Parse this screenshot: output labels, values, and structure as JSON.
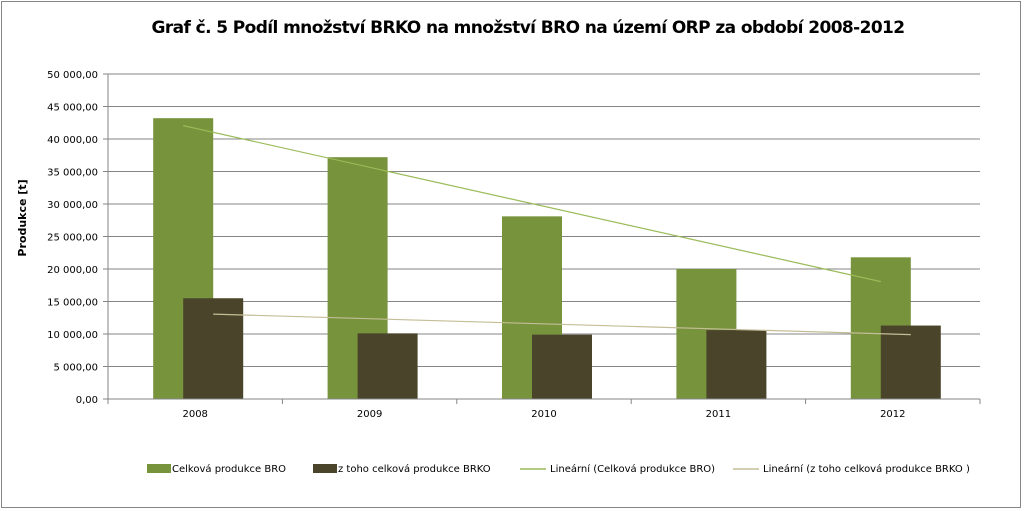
{
  "chart_data": {
    "type": "bar",
    "title": "Graf č. 5 Podíl množství BRKO na množství BRO na území ORP za období 2008-2012",
    "xlabel": "",
    "ylabel": "Produkce [t]",
    "categories": [
      "2008",
      "2009",
      "2010",
      "2011",
      "2012"
    ],
    "series": [
      {
        "name": "Celková produkce BRO",
        "values": [
          43200,
          37200,
          28100,
          20000,
          21800
        ],
        "color": "#77933c"
      },
      {
        "name": "z toho celková produkce BRKO",
        "values": [
          15500,
          10100,
          9900,
          10600,
          11300
        ],
        "color": "#4a452a"
      }
    ],
    "trendlines": [
      {
        "name": "Lineární (Celková produkce BRO)",
        "series": 0,
        "color": "#9bbb59"
      },
      {
        "name": "Lineární (z toho celková produkce BRKO )",
        "series": 1,
        "color": "#c4bd97"
      }
    ],
    "ylim": [
      0,
      50000
    ],
    "ytick_values": [
      0,
      5000,
      10000,
      15000,
      20000,
      25000,
      30000,
      35000,
      40000,
      45000,
      50000
    ],
    "ytick_labels": [
      "0,00",
      "5 000,00",
      "10 000,00",
      "15 000,00",
      "20 000,00",
      "25 000,00",
      "30 000,00",
      "35 000,00",
      "40 000,00",
      "45 000,00",
      "50 000,00"
    ],
    "grid": true,
    "legend_position": "bottom"
  }
}
